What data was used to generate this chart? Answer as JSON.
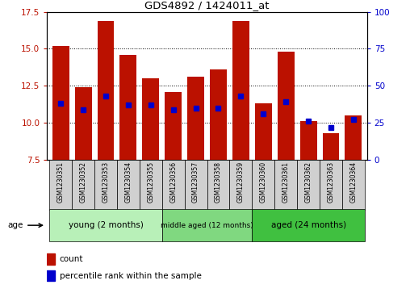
{
  "title": "GDS4892 / 1424011_at",
  "samples": [
    "GSM1230351",
    "GSM1230352",
    "GSM1230353",
    "GSM1230354",
    "GSM1230355",
    "GSM1230356",
    "GSM1230357",
    "GSM1230358",
    "GSM1230359",
    "GSM1230360",
    "GSM1230361",
    "GSM1230362",
    "GSM1230363",
    "GSM1230364"
  ],
  "count_values": [
    15.2,
    12.4,
    16.9,
    14.6,
    13.0,
    12.1,
    13.1,
    13.6,
    16.9,
    11.3,
    14.8,
    10.1,
    9.3,
    10.5
  ],
  "percentile_values": [
    11.3,
    10.9,
    11.8,
    11.2,
    11.2,
    10.9,
    11.0,
    11.0,
    11.8,
    10.6,
    11.4,
    10.1,
    9.7,
    10.2
  ],
  "ymin": 7.5,
  "ymax": 17.5,
  "yticks_left": [
    7.5,
    10.0,
    12.5,
    15.0,
    17.5
  ],
  "yticks_right": [
    0,
    25,
    50,
    75,
    100
  ],
  "groups": [
    {
      "label": "young (2 months)",
      "start": 0,
      "end": 5,
      "color": "#b8f0b8"
    },
    {
      "label": "middle aged (12 months)",
      "start": 5,
      "end": 9,
      "color": "#80d880"
    },
    {
      "label": "aged (24 months)",
      "start": 9,
      "end": 14,
      "color": "#40c040"
    }
  ],
  "bar_color": "#bb1100",
  "blue_color": "#0000cc",
  "bar_width": 0.75,
  "tick_label_bg": "#d0d0d0",
  "legend_count_label": "count",
  "legend_pct_label": "percentile rank within the sample",
  "age_label": "age"
}
